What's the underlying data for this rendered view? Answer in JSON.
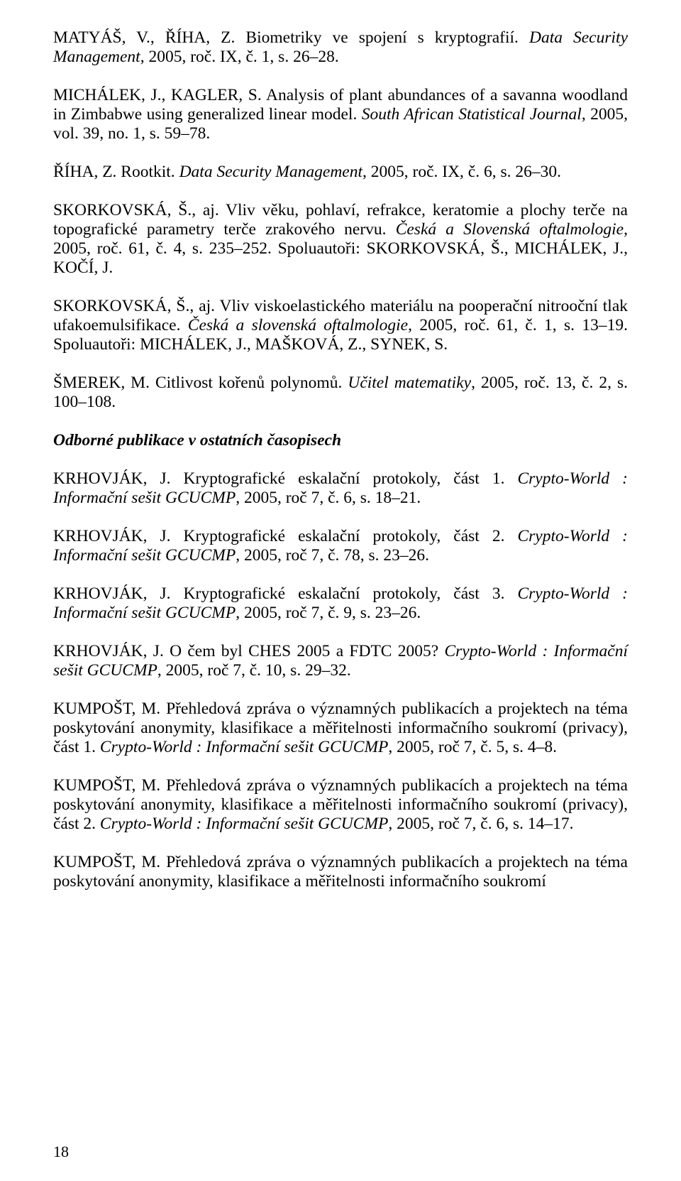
{
  "entries": [
    "MATYÁŠ, V., ŘÍHA, Z. Biometriky ve spojení s kryptografií. <i>Data Security Management</i>, 2005, roč. IX, č. 1, s. 26–28.",
    "MICHÁLEK, J., KAGLER, S. Analysis of plant abundances of a savanna woodland in Zimbabwe using generalized linear model. <i>South African Statistical Journal</i>, 2005, vol. 39, no. 1, s. 59–78.",
    "ŘÍHA, Z. Rootkit. <i>Data Security Management</i>, 2005, roč. IX, č. 6, s. 26–30.",
    "SKORKOVSKÁ, Š., aj. Vliv věku, pohlaví, refrakce, keratomie a plochy terče na topografické parametry terče zrakového nervu. <i>Česká a Slovenská oftalmologie</i>, 2005, roč. 61, č. 4, s. 235–252. Spoluautoři: SKORKOVSKÁ, Š., MICHÁLEK, J., KOČÍ, J.",
    "SKORKOVSKÁ, Š., aj. Vliv viskoelastického materiálu na pooperační nitrooční tlak ufakoemulsifikace. <i>Česká a slovenská oftalmologie</i>, 2005, roč. 61, č. 1, s. 13–19. Spoluautoři: MICHÁLEK, J., MAŠKOVÁ, Z., SYNEK, S.",
    "ŠMEREK, M. Citlivost kořenů polynomů. <i>Učitel matematiky</i>, 2005, roč. 13, č. 2, s. 100–108."
  ],
  "heading": "Odborné publikace v ostatních časopisech",
  "entries2": [
    "KRHOVJÁK, J. Kryptografické eskalační protokoly, část 1. <i>Crypto-World : Informační sešit GCUCMP</i>, 2005, roč 7, č. 6, s. 18–21.",
    "KRHOVJÁK, J. Kryptografické eskalační protokoly, část 2. <i>Crypto-World : Informační sešit GCUCMP</i>, 2005, roč 7, č. 78, s. 23–26.",
    "KRHOVJÁK, J. Kryptografické eskalační protokoly, část 3. <i>Crypto-World : Informační sešit GCUCMP</i>, 2005, roč 7, č. 9, s. 23–26.",
    "KRHOVJÁK, J. O čem byl CHES 2005 a FDTC 2005? <i>Crypto-World : Informační sešit GCUCMP</i>, 2005, roč 7, č. 10, s. 29–32.",
    "KUMPOŠT, M. Přehledová zpráva o významných publikacích a projektech na téma poskytování anonymity, klasifikace a měřitelnosti informačního soukromí (privacy), část 1. <i>Crypto-World : Informační sešit GCUCMP</i>, 2005, roč 7, č. 5, s. 4–8.",
    "KUMPOŠT, M. Přehledová zpráva o významných publikacích a projektech na téma poskytování anonymity, klasifikace a měřitelnosti informačního soukromí (privacy), část 2. <i>Crypto-World : Informační sešit GCUCMP</i>, 2005, roč 7, č. 6, s. 14–17.",
    "KUMPOŠT, M. Přehledová zpráva o významných publikacích a projektech na téma poskytování anonymity, klasifikace a měřitelnosti informačního soukromí"
  ],
  "page_number": "18"
}
